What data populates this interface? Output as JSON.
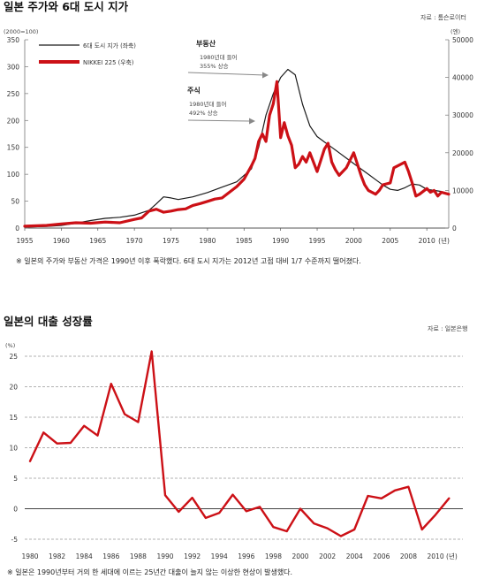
{
  "chart_data": [
    {
      "type": "line",
      "title": "일본 주가와 6대 도시 지가",
      "source": "자료 : 톰슨로이터",
      "left_unit": "(2000=100)",
      "right_unit": "(엔)",
      "x_unit_suffix": "(년)",
      "x_ticks": [
        "1955",
        "1960",
        "1965",
        "1970",
        "1975",
        "1980",
        "1985",
        "1990",
        "1995",
        "2000",
        "2005",
        "2010"
      ],
      "y_left_ticks": [
        "0",
        "50",
        "100",
        "150",
        "200",
        "250",
        "300",
        "350"
      ],
      "y_right_ticks": [
        "0",
        "10000",
        "20000",
        "30000",
        "40000",
        "50000"
      ],
      "ylim_left": [
        0,
        350
      ],
      "ylim_right": [
        0,
        50000
      ],
      "xlim": [
        1955,
        2013
      ],
      "legend_position": "top-left",
      "series": [
        {
          "name": "6대 도시 지가 (좌축)",
          "axis": "left",
          "color": "#1a1a1a",
          "x": [
            1955,
            1958,
            1960,
            1962,
            1964,
            1966,
            1968,
            1970,
            1972,
            1973,
            1974,
            1975,
            1976,
            1978,
            1980,
            1982,
            1984,
            1986,
            1987,
            1988,
            1989,
            1990,
            1991,
            1992,
            1993,
            1994,
            1995,
            1996,
            1997,
            1998,
            1999,
            2000,
            2001,
            2002,
            2003,
            2004,
            2005,
            2006,
            2007,
            2008,
            2009,
            2010,
            2011,
            2012
          ],
          "values": [
            2,
            3,
            5,
            9,
            14,
            18,
            20,
            24,
            33,
            45,
            58,
            56,
            53,
            58,
            66,
            76,
            86,
            110,
            150,
            210,
            250,
            280,
            295,
            285,
            230,
            190,
            170,
            160,
            150,
            140,
            130,
            120,
            110,
            100,
            90,
            80,
            72,
            70,
            75,
            82,
            80,
            72,
            70,
            68
          ]
        },
        {
          "name": "NIKKEI 225 (우축)",
          "axis": "right",
          "color": "#cc1016",
          "x": [
            1955,
            1958,
            1960,
            1962,
            1964,
            1966,
            1968,
            1970,
            1971,
            1972,
            1973,
            1974,
            1975,
            1976,
            1977,
            1978,
            1979,
            1980,
            1981,
            1982,
            1983,
            1984,
            1985,
            1986,
            1986.5,
            1987,
            1987.5,
            1988,
            1988.5,
            1989,
            1989.5,
            1990,
            1990.5,
            1991,
            1991.5,
            1992,
            1992.5,
            1993,
            1993.5,
            1994,
            1995,
            1995.5,
            1996,
            1996.5,
            1997,
            1997.5,
            1998,
            1999,
            2000,
            2000.5,
            2001,
            2001.5,
            2002,
            2003,
            2003.5,
            2004,
            2005,
            2005.5,
            2006,
            2007,
            2007.5,
            2008,
            2008.5,
            2009,
            2010,
            2010.5,
            2011,
            2011.5,
            2012,
            2013
          ],
          "values": [
            500,
            700,
            1100,
            1400,
            1300,
            1600,
            1400,
            2300,
            2700,
            4500,
            5000,
            4200,
            4500,
            4900,
            5100,
            6000,
            6500,
            7100,
            7700,
            8000,
            9500,
            11000,
            13000,
            16500,
            18500,
            23000,
            25000,
            23000,
            30000,
            33000,
            38900,
            24000,
            28000,
            24500,
            22000,
            16000,
            17000,
            19000,
            17500,
            20000,
            15000,
            18000,
            21000,
            22500,
            17500,
            15500,
            14000,
            16000,
            20000,
            17000,
            14000,
            11500,
            10000,
            9000,
            10000,
            11500,
            12000,
            16000,
            16500,
            17500,
            15000,
            12000,
            8500,
            9000,
            10500,
            9500,
            10000,
            8500,
            9500,
            9000
          ]
        }
      ],
      "annotations": [
        {
          "head": "부동산",
          "line1": "1980년대 들어",
          "line2": "355% 상승"
        },
        {
          "head": "주식",
          "line1": "1980년대 들어",
          "line2": "492% 상승"
        }
      ],
      "note": "※ 일본의 주가와 부동산 가격은 1990년 이후 폭락했다. 6대 도시 지가는 2012년 고점 대비  1/7 수준까지 떨어졌다."
    },
    {
      "type": "line",
      "title": "일본의 대출 성장률",
      "source": "자료 : 일본은행",
      "y_unit": "(%)",
      "x_unit_suffix": "(년)",
      "x_ticks": [
        "1980",
        "1982",
        "1984",
        "1986",
        "1988",
        "1990",
        "1992",
        "1994",
        "1996",
        "1998",
        "2000",
        "2002",
        "2004",
        "2006",
        "2008",
        "2010"
      ],
      "y_ticks": [
        "-5",
        "0",
        "5",
        "10",
        "15",
        "20",
        "25"
      ],
      "ylim": [
        -5,
        25
      ],
      "xlim": [
        1980,
        2011.5
      ],
      "grid": "horizontal dashed",
      "series": [
        {
          "color": "#cc1016",
          "x": [
            1980,
            1981,
            1982,
            1983,
            1984,
            1985,
            1986,
            1987,
            1988,
            1989,
            1990,
            1991,
            1992,
            1993,
            1994,
            1995,
            1996,
            1997,
            1998,
            1999,
            2000,
            2001,
            2002,
            2003,
            2004,
            2005,
            2006,
            2007,
            2008,
            2009,
            2010,
            2011
          ],
          "values": [
            7.8,
            12.5,
            10.7,
            10.8,
            13.6,
            12.0,
            20.5,
            15.5,
            14.2,
            25.8,
            2.2,
            -0.5,
            1.8,
            -1.5,
            -0.7,
            2.3,
            -0.4,
            0.3,
            -3.0,
            -3.7,
            0.0,
            -2.4,
            -3.2,
            -4.5,
            -3.4,
            2.1,
            1.7,
            3.0,
            3.6,
            -3.4,
            -1.0,
            1.7
          ]
        }
      ],
      "note": "※ 일본은 1990년부터 거의 한 세대에 이르는 25년간 대출이 늘지 않는 이상한 현상이 발생했다."
    }
  ]
}
